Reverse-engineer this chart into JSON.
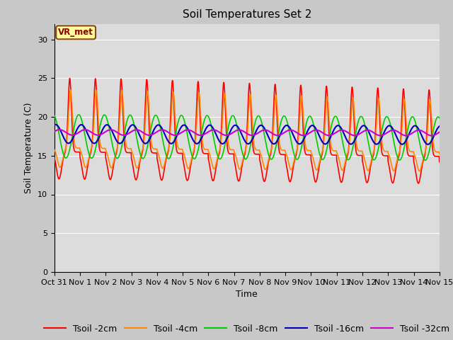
{
  "title": "Soil Temperatures Set 2",
  "xlabel": "Time",
  "ylabel": "Soil Temperature (C)",
  "ylim": [
    0,
    32
  ],
  "yticks": [
    0,
    5,
    10,
    15,
    20,
    25,
    30
  ],
  "xlim_days": [
    0,
    15
  ],
  "series": {
    "Tsoil -2cm": {
      "color": "#ff0000",
      "lw": 1.2
    },
    "Tsoil -4cm": {
      "color": "#ff8800",
      "lw": 1.2
    },
    "Tsoil -8cm": {
      "color": "#00cc00",
      "lw": 1.2
    },
    "Tsoil -16cm": {
      "color": "#0000bb",
      "lw": 1.5
    },
    "Tsoil -32cm": {
      "color": "#cc00cc",
      "lw": 1.5
    }
  },
  "annotation_label": "VR_met",
  "bg_color": "#dcdcdc",
  "grid_color": "#ffffff",
  "fig_bg_color": "#c8c8c8",
  "title_fontsize": 11,
  "axis_fontsize": 9,
  "tick_fontsize": 8,
  "legend_fontsize": 9
}
